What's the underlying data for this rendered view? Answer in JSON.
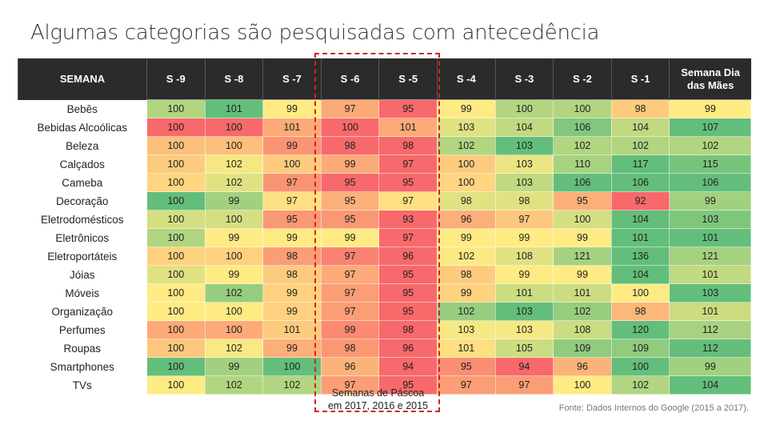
{
  "title": "Algumas categorias são pesquisadas com antecedência",
  "caption_line1": "Semanas de Páscoa",
  "caption_line2": "em 2017, 2016 e 2015",
  "source": "Fonte: Dados Internos do Google (2015 a 2017).",
  "colors": {
    "low": "#f8696b",
    "mid": "#ffeb84",
    "high": "#63be7b",
    "header_bg": "#2b2b2b",
    "highlight_box": "#d42020"
  },
  "chart_data": {
    "type": "heatmap",
    "title": "Algumas categorias são pesquisadas com antecedência",
    "corner_label": "SEMANA",
    "columns": [
      "S -9",
      "S -8",
      "S -7",
      "S -6",
      "S -5",
      "S -4",
      "S -3",
      "S -2",
      "S -1",
      "Semana Dia das Mães"
    ],
    "highlighted_columns": [
      "S -6",
      "S -5"
    ],
    "rows": [
      {
        "label": "Bebês",
        "values": [
          100,
          101,
          99,
          97,
          95,
          99,
          100,
          100,
          98,
          99
        ]
      },
      {
        "label": "Bebidas Alcoólicas",
        "values": [
          100,
          100,
          101,
          100,
          101,
          103,
          104,
          106,
          104,
          107
        ]
      },
      {
        "label": "Beleza",
        "values": [
          100,
          100,
          99,
          98,
          98,
          102,
          103,
          102,
          102,
          102
        ]
      },
      {
        "label": "Calçados",
        "values": [
          100,
          102,
          100,
          99,
          97,
          100,
          103,
          110,
          117,
          115
        ]
      },
      {
        "label": "Cameba",
        "values": [
          100,
          102,
          97,
          95,
          95,
          100,
          103,
          106,
          106,
          106
        ]
      },
      {
        "label": "Decoração",
        "values": [
          100,
          99,
          97,
          95,
          97,
          98,
          98,
          95,
          92,
          99
        ]
      },
      {
        "label": "Eletrodomésticos",
        "values": [
          100,
          100,
          95,
          95,
          93,
          96,
          97,
          100,
          104,
          103
        ]
      },
      {
        "label": "Eletrônicos",
        "values": [
          100,
          99,
          99,
          99,
          97,
          99,
          99,
          99,
          101,
          101
        ]
      },
      {
        "label": "Eletroportáteis",
        "values": [
          100,
          100,
          98,
          97,
          96,
          102,
          108,
          121,
          136,
          121
        ]
      },
      {
        "label": "Jóias",
        "values": [
          100,
          99,
          98,
          97,
          95,
          98,
          99,
          99,
          104,
          101
        ]
      },
      {
        "label": "Móveis",
        "values": [
          100,
          102,
          99,
          97,
          95,
          99,
          101,
          101,
          100,
          103
        ]
      },
      {
        "label": "Organização",
        "values": [
          100,
          100,
          99,
          97,
          95,
          102,
          103,
          102,
          98,
          101
        ]
      },
      {
        "label": "Perfumes",
        "values": [
          100,
          100,
          101,
          99,
          98,
          103,
          103,
          108,
          120,
          112
        ]
      },
      {
        "label": "Roupas",
        "values": [
          100,
          102,
          99,
          98,
          96,
          101,
          105,
          109,
          109,
          112
        ]
      },
      {
        "label": "Smartphones",
        "values": [
          100,
          99,
          100,
          96,
          94,
          95,
          94,
          96,
          100,
          99
        ]
      },
      {
        "label": "TVs",
        "values": [
          100,
          102,
          102,
          97,
          95,
          97,
          97,
          100,
          102,
          104
        ]
      }
    ]
  }
}
